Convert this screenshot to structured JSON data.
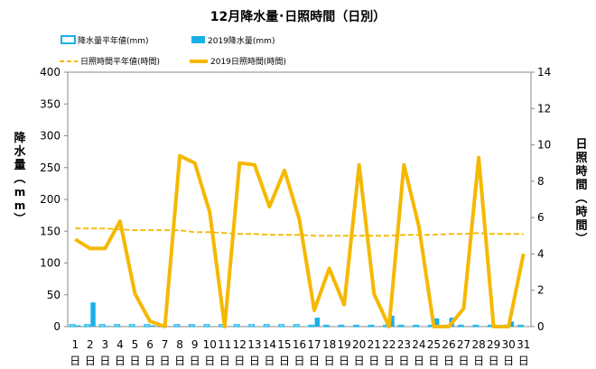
{
  "chart_data": {
    "type": "bar+line",
    "title": "12月降水量･日照時間（日別）",
    "y_left": {
      "label": "降水量（mm）",
      "range": [
        0,
        400
      ],
      "ticks": [
        0,
        50,
        100,
        150,
        200,
        250,
        300,
        350,
        400
      ]
    },
    "y_right": {
      "label": "日照時間（時間）",
      "range": [
        0,
        14
      ],
      "ticks": [
        0,
        2,
        4,
        6,
        8,
        10,
        12,
        14
      ]
    },
    "categories": [
      "1",
      "2",
      "3",
      "4",
      "5",
      "6",
      "7",
      "8",
      "9",
      "10",
      "11",
      "12",
      "13",
      "14",
      "15",
      "16",
      "17",
      "18",
      "19",
      "20",
      "21",
      "22",
      "23",
      "24",
      "25",
      "26",
      "27",
      "28",
      "29",
      "30",
      "31"
    ],
    "day_suffix": "日",
    "series": [
      {
        "name": "降水量平年値(mm)",
        "kind": "bar",
        "axis": "left",
        "color": "#33bbee",
        "values": [
          3,
          3,
          3,
          3,
          3,
          3,
          2,
          3,
          3,
          3,
          3,
          3,
          3,
          3,
          3,
          3,
          2,
          2,
          2,
          2,
          2,
          2,
          2,
          2,
          2,
          2,
          2,
          2,
          2,
          2,
          2
        ]
      },
      {
        "name": "2019降水量(mm)",
        "kind": "bar",
        "axis": "left",
        "color": "#1ab0e8",
        "values": [
          2,
          38,
          1,
          0,
          0,
          2,
          0,
          0,
          0,
          0,
          0,
          0,
          0,
          0,
          0,
          0,
          14,
          0,
          0,
          0,
          0,
          17,
          0,
          0,
          13,
          14,
          0,
          0,
          0,
          8,
          0
        ]
      },
      {
        "name": "日照時間平年値(時間)",
        "kind": "line",
        "axis": "right",
        "color": "#f5b800",
        "dashed": true,
        "values": [
          5.4,
          5.4,
          5.4,
          5.35,
          5.3,
          5.3,
          5.3,
          5.3,
          5.2,
          5.2,
          5.15,
          5.1,
          5.1,
          5.05,
          5.05,
          5.05,
          5.0,
          5.0,
          5.0,
          5.0,
          5.0,
          5.0,
          5.05,
          5.05,
          5.05,
          5.1,
          5.1,
          5.15,
          5.1,
          5.1,
          5.1
        ]
      },
      {
        "name": "2019日照時間(時間)",
        "kind": "line",
        "axis": "right",
        "color": "#f5b800",
        "dashed": false,
        "values": [
          4.8,
          4.3,
          4.3,
          5.8,
          1.8,
          0.3,
          0,
          9.4,
          9.0,
          6.3,
          0,
          9.0,
          8.9,
          6.6,
          8.6,
          5.9,
          0.9,
          3.2,
          1.2,
          8.9,
          1.8,
          0,
          8.9,
          5.5,
          0,
          0,
          1.0,
          9.3,
          0,
          0,
          4.0
        ]
      }
    ],
    "legend": "top"
  }
}
